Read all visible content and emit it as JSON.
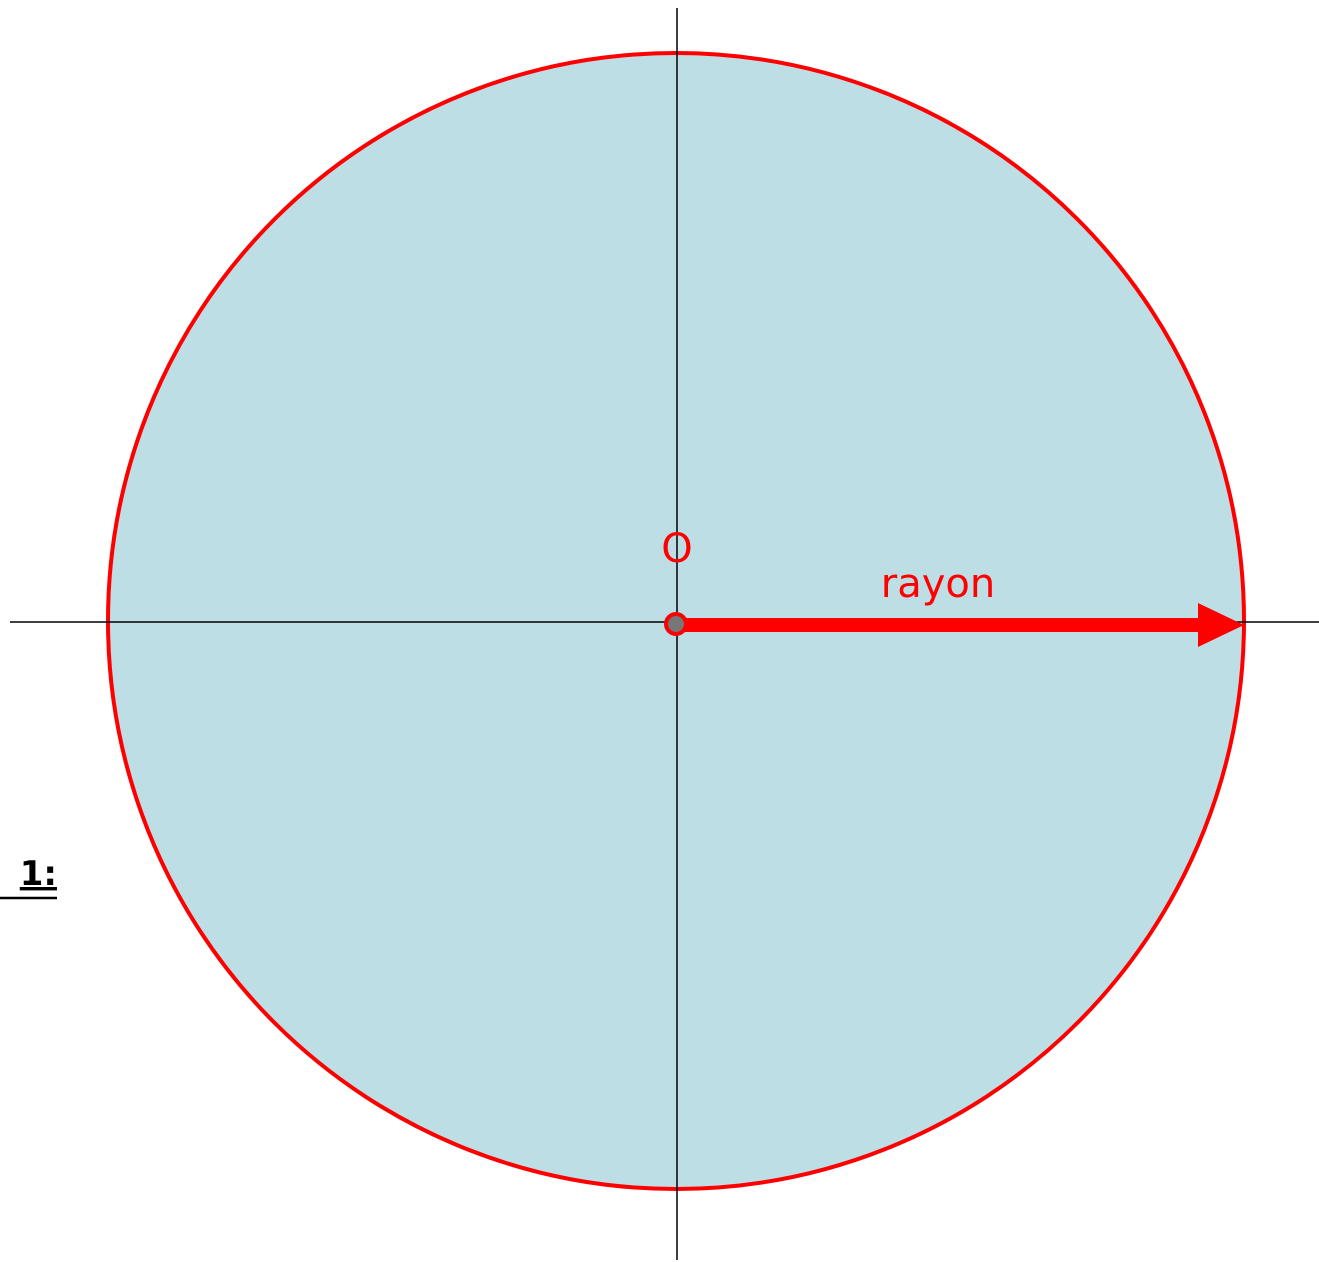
{
  "labels": {
    "center": "O",
    "radius": "rayon",
    "side_note": "1:"
  }
}
